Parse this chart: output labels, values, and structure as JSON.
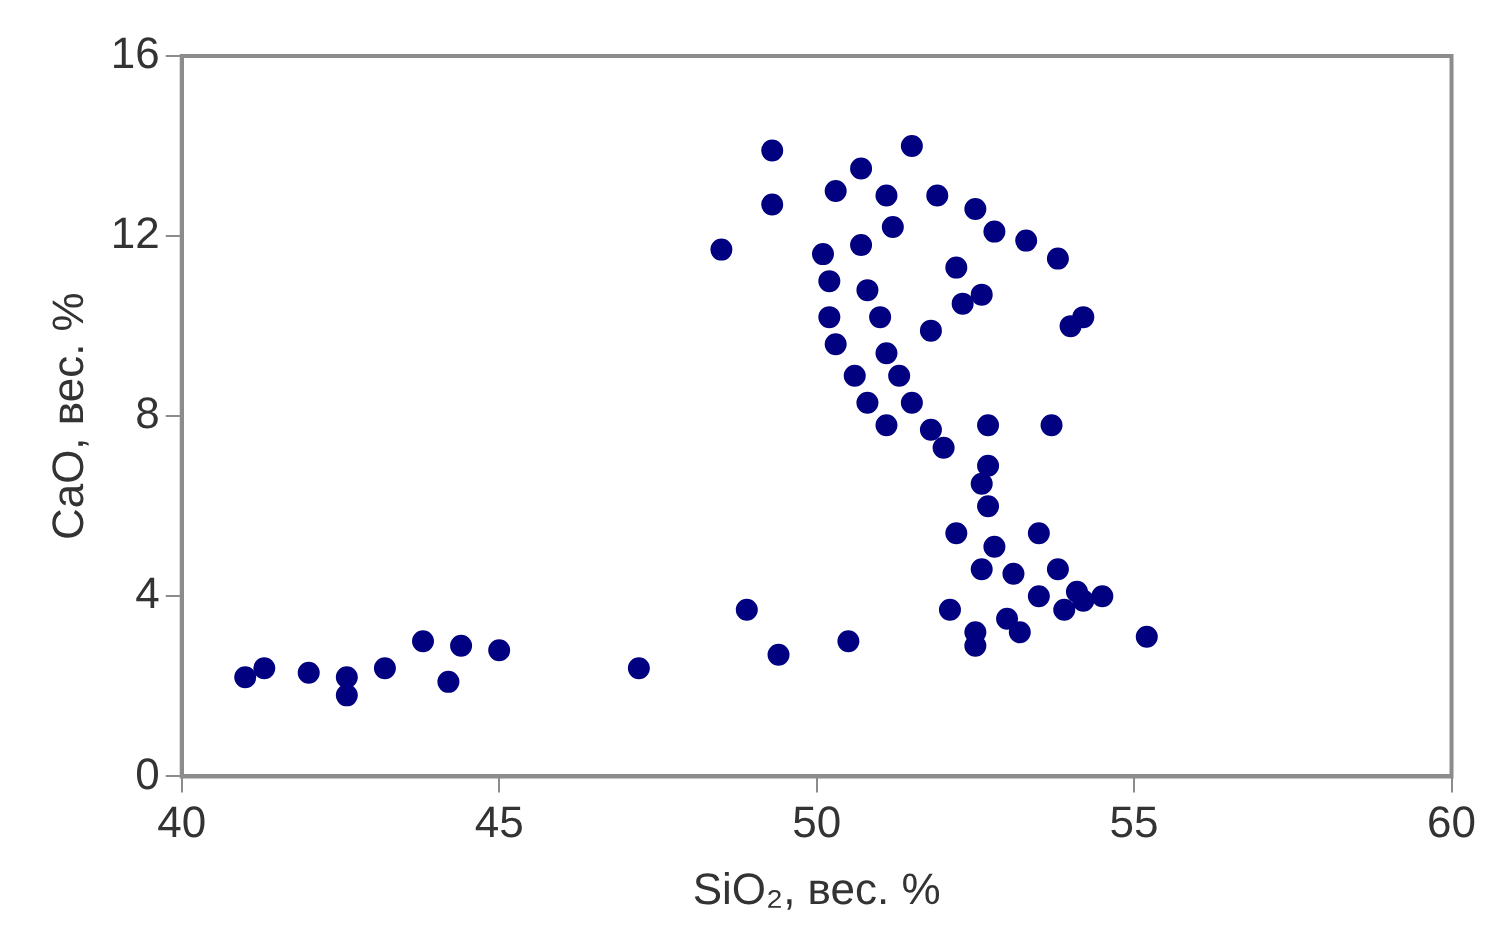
{
  "chart_data": {
    "type": "scatter",
    "xlabel": "SiO₂, вес. %",
    "ylabel": "CaO, вес. %",
    "xlim": [
      40,
      60
    ],
    "xticks": [
      40,
      45,
      50,
      55,
      60
    ],
    "ylim": [
      0,
      16
    ],
    "yticks": [
      0,
      4,
      8,
      12,
      16
    ],
    "grid": false,
    "legend": false,
    "marker": "circle",
    "series": [
      {
        "color": "#000080",
        "x": [
          41.0,
          41.3,
          42.0,
          42.6,
          42.6,
          43.2,
          43.8,
          44.4,
          44.2,
          45.0,
          47.2,
          48.9,
          49.4,
          50.5,
          48.5,
          49.3,
          49.3,
          51.5,
          50.7,
          50.3,
          51.1,
          51.9,
          52.5,
          52.8,
          53.3,
          53.8,
          50.1,
          50.7,
          51.2,
          50.2,
          50.8,
          52.2,
          52.6,
          50.2,
          51.0,
          52.3,
          54.2,
          54.0,
          50.3,
          51.1,
          51.8,
          50.6,
          51.3,
          50.8,
          51.5,
          51.1,
          51.8,
          52.7,
          53.7,
          52.7,
          52.0,
          52.6,
          52.7,
          52.2,
          53.5,
          52.8,
          52.6,
          53.1,
          53.8,
          53.5,
          54.1,
          54.5,
          52.1,
          52.5,
          53.0,
          53.2,
          53.9,
          55.2,
          52.5,
          54.2
        ],
        "values": [
          2.2,
          2.4,
          2.3,
          2.2,
          1.8,
          2.4,
          3.0,
          2.9,
          2.1,
          2.8,
          2.4,
          3.7,
          2.7,
          3.0,
          11.7,
          13.9,
          12.7,
          14.0,
          13.5,
          13.0,
          12.9,
          12.9,
          12.6,
          12.1,
          11.9,
          11.5,
          11.6,
          11.8,
          12.2,
          11.0,
          10.8,
          11.3,
          10.7,
          10.2,
          10.2,
          10.5,
          10.2,
          10.0,
          9.6,
          9.4,
          9.9,
          8.9,
          8.9,
          8.3,
          8.3,
          7.8,
          7.7,
          7.8,
          7.8,
          6.9,
          7.3,
          6.5,
          6.0,
          5.4,
          5.4,
          5.1,
          4.6,
          4.5,
          4.6,
          4.0,
          4.1,
          4.0,
          3.7,
          3.2,
          3.5,
          3.2,
          3.7,
          3.1,
          2.9,
          3.9
        ]
      }
    ]
  }
}
